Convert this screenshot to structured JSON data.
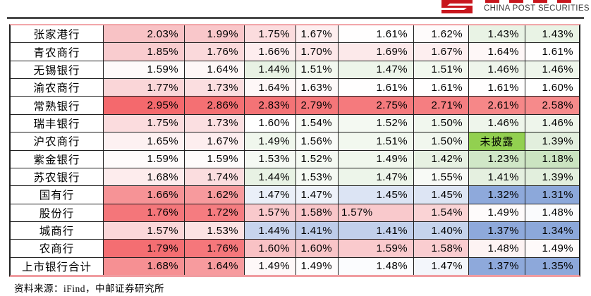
{
  "brand": {
    "name_en": "CHINA POST SECURITIES",
    "logo_color": "#c8161d"
  },
  "source_note": "资料来源：iFind，中邮证券研究所",
  "table": {
    "rows": [
      {
        "name": "张家港行",
        "cells": [
          {
            "v": "2.03%",
            "bg": "#F8C2C5"
          },
          {
            "v": "1.99%",
            "bg": "#F9C7CA"
          },
          {
            "v": "1.75%",
            "bg": "#FBDCDE"
          },
          {
            "v": "1.67%",
            "bg": "#FDEEEF"
          },
          {
            "v": "1.61%",
            "bg": "#FFFEFE"
          },
          {
            "v": "1.62%",
            "bg": "#FEFBFB"
          },
          {
            "v": "1.43%",
            "bg": "#E9F3E5"
          },
          {
            "v": "1.43%",
            "bg": "#E9F3E5"
          }
        ]
      },
      {
        "name": "青农商行",
        "cells": [
          {
            "v": "1.85%",
            "bg": "#F9CCCF"
          },
          {
            "v": "1.76%",
            "bg": "#FAD9DB"
          },
          {
            "v": "1.66%",
            "bg": "#FDEDEE"
          },
          {
            "v": "1.70%",
            "bg": "#FCE7E8"
          },
          {
            "v": "1.69%",
            "bg": "#FCE9EA"
          },
          {
            "v": "1.67%",
            "bg": "#FDEEEF"
          },
          {
            "v": "1.64%",
            "bg": "#FEF7F7"
          },
          {
            "v": "1.61%",
            "bg": "#FFFEFE"
          }
        ]
      },
      {
        "name": "无锡银行",
        "cells": [
          {
            "v": "1.59%",
            "bg": "#FEFAFA"
          },
          {
            "v": "1.64%",
            "bg": "#FEF7F7"
          },
          {
            "v": "1.44%",
            "bg": "#E8F2E4"
          },
          {
            "v": "1.51%",
            "bg": "#F2F8EF"
          },
          {
            "v": "1.47%",
            "bg": "#EDF5EA"
          },
          {
            "v": "1.51%",
            "bg": "#F2F8EF"
          },
          {
            "v": "1.46%",
            "bg": "#EEF5EB"
          },
          {
            "v": "1.46%",
            "bg": "#EEF5EB"
          }
        ]
      },
      {
        "name": "渝农商行",
        "cells": [
          {
            "v": "1.77%",
            "bg": "#FAD6D8"
          },
          {
            "v": "1.73%",
            "bg": "#FBDEE0"
          },
          {
            "v": "1.64%",
            "bg": "#FEF7F7"
          },
          {
            "v": "1.63%",
            "bg": "#FEF9F9"
          },
          {
            "v": "1.61%",
            "bg": "#FFFEFE"
          },
          {
            "v": "1.61%",
            "bg": "#FFFEFE"
          },
          {
            "v": "1.61%",
            "bg": "#FFFEFE"
          },
          {
            "v": "1.60%",
            "bg": "#FFFFFF"
          }
        ]
      },
      {
        "name": "常熟银行",
        "cells": [
          {
            "v": "2.95%",
            "bg": "#F4696D"
          },
          {
            "v": "2.86%",
            "bg": "#F47073"
          },
          {
            "v": "2.83%",
            "bg": "#F47376"
          },
          {
            "v": "2.79%",
            "bg": "#F57679"
          },
          {
            "v": "2.75%",
            "bg": "#F57A7D"
          },
          {
            "v": "2.71%",
            "bg": "#F57E81"
          },
          {
            "v": "2.61%",
            "bg": "#F68788"
          },
          {
            "v": "2.58%",
            "bg": "#F68A8B"
          }
        ]
      },
      {
        "name": "瑞丰银行",
        "cells": [
          {
            "v": "1.75%",
            "bg": "#FBDCDE"
          },
          {
            "v": "1.73%",
            "bg": "#FBDFE1"
          },
          {
            "v": "1.60%",
            "bg": "#FFFFFF"
          },
          {
            "v": "1.54%",
            "bg": "#F7FAF5"
          },
          {
            "v": "1.52%",
            "bg": "#F4F9F2"
          },
          {
            "v": "1.50%",
            "bg": "#F1F7EE"
          },
          {
            "v": "1.46%",
            "bg": "#EEF5EB"
          },
          {
            "v": "1.46%",
            "bg": "#EEF5EB"
          }
        ]
      },
      {
        "name": "沪农商行",
        "cells": [
          {
            "v": "1.65%",
            "bg": "#FDF1F2"
          },
          {
            "v": "1.67%",
            "bg": "#FDEEEF"
          },
          {
            "v": "1.49%",
            "bg": "#F0F7ED"
          },
          {
            "v": "1.56%",
            "bg": "#F9FBF8"
          },
          {
            "v": "1.51%",
            "bg": "#F2F8EF"
          },
          {
            "v": "1.50%",
            "bg": "#F1F7EE"
          },
          {
            "v": "未披露",
            "bg": "#92D050",
            "align": "center"
          },
          {
            "v": "1.39%",
            "bg": "#E2EFDD"
          }
        ]
      },
      {
        "name": "紫金银行",
        "cells": [
          {
            "v": "1.59%",
            "bg": "#FEFBFB"
          },
          {
            "v": "1.59%",
            "bg": "#FEFBFB"
          },
          {
            "v": "1.53%",
            "bg": "#F5F9F3"
          },
          {
            "v": "1.52%",
            "bg": "#F4F9F2"
          },
          {
            "v": "1.49%",
            "bg": "#F0F7ED"
          },
          {
            "v": "1.42%",
            "bg": "#E7F1E2"
          },
          {
            "v": "1.23%",
            "bg": "#D0E7C7"
          },
          {
            "v": "1.18%",
            "bg": "#CBE4C1"
          }
        ]
      },
      {
        "name": "苏农银行",
        "cells": [
          {
            "v": "1.68%",
            "bg": "#FDECED"
          },
          {
            "v": "1.74%",
            "bg": "#FBDDDF"
          },
          {
            "v": "1.44%",
            "bg": "#E8F2E4"
          },
          {
            "v": "1.53%",
            "bg": "#F5F9F3"
          },
          {
            "v": "1.47%",
            "bg": "#EDF5EA"
          },
          {
            "v": "1.55%",
            "bg": "#F8FAF6"
          },
          {
            "v": "1.41%",
            "bg": "#E5F0E0"
          },
          {
            "v": "1.39%",
            "bg": "#E2EFDD"
          }
        ]
      },
      {
        "name": "国有行",
        "cells": [
          {
            "v": "1.66%",
            "bg": "#F69396"
          },
          {
            "v": "1.62%",
            "bg": "#F79A9D"
          },
          {
            "v": "1.47%",
            "bg": "#EAEFF8"
          },
          {
            "v": "1.47%",
            "bg": "#EEF2FA"
          },
          {
            "v": "1.45%",
            "bg": "#DCE4F4"
          },
          {
            "v": "1.45%",
            "bg": "#DDE5F4"
          },
          {
            "v": "1.32%",
            "bg": "#8EA9DB"
          },
          {
            "v": "1.31%",
            "bg": "#8CA8DA"
          }
        ]
      },
      {
        "name": "股份行",
        "cells": [
          {
            "v": "1.76%",
            "bg": "#F4767A"
          },
          {
            "v": "1.72%",
            "bg": "#F57C80"
          },
          {
            "v": "1.57%",
            "bg": "#F9C9CC"
          },
          {
            "v": "1.58%",
            "bg": "#F9C6C9"
          },
          {
            "v": "1.57%",
            "bg": "#F9C9CC",
            "align": "left"
          },
          {
            "v": "1.54%",
            "bg": "#FAD3D5"
          },
          {
            "v": "1.49%",
            "bg": "#FEFBFB"
          },
          {
            "v": "1.48%",
            "bg": "#FAFBFD"
          }
        ]
      },
      {
        "name": "城商行",
        "cells": [
          {
            "v": "1.57%",
            "bg": "#FBD7D9"
          },
          {
            "v": "1.53%",
            "bg": "#FCE2E3"
          },
          {
            "v": "1.44%",
            "bg": "#C7D4ED"
          },
          {
            "v": "1.41%",
            "bg": "#BDCCE9"
          },
          {
            "v": "1.41%",
            "bg": "#C2D0EB"
          },
          {
            "v": "1.40%",
            "bg": "#C5D3EC"
          },
          {
            "v": "1.37%",
            "bg": "#8EA9DB"
          },
          {
            "v": "1.34%",
            "bg": "#8CA8DA"
          }
        ]
      },
      {
        "name": "农商行",
        "cells": [
          {
            "v": "1.79%",
            "bg": "#F46E72"
          },
          {
            "v": "1.76%",
            "bg": "#F5777B"
          },
          {
            "v": "1.60%",
            "bg": "#F9C2C5"
          },
          {
            "v": "1.60%",
            "bg": "#F9C5C8"
          },
          {
            "v": "1.59%",
            "bg": "#FACACD"
          },
          {
            "v": "1.58%",
            "bg": "#FACDD0"
          },
          {
            "v": "1.48%",
            "bg": "#FDF3F3"
          },
          {
            "v": "1.49%",
            "bg": "#FEFAFA"
          }
        ]
      },
      {
        "name": "上市银行合计",
        "cells": [
          {
            "v": "1.68%",
            "bg": "#F69093"
          },
          {
            "v": "1.64%",
            "bg": "#F79B9E"
          },
          {
            "v": "1.49%",
            "bg": "#FEF8F8"
          },
          {
            "v": "1.49%",
            "bg": "#FEFCFC"
          },
          {
            "v": "1.48%",
            "bg": "#FBFCFE"
          },
          {
            "v": "1.47%",
            "bg": "#F3F6FB"
          },
          {
            "v": "1.37%",
            "bg": "#8EA9DB"
          },
          {
            "v": "1.35%",
            "bg": "#8DA8DA"
          }
        ]
      }
    ]
  }
}
